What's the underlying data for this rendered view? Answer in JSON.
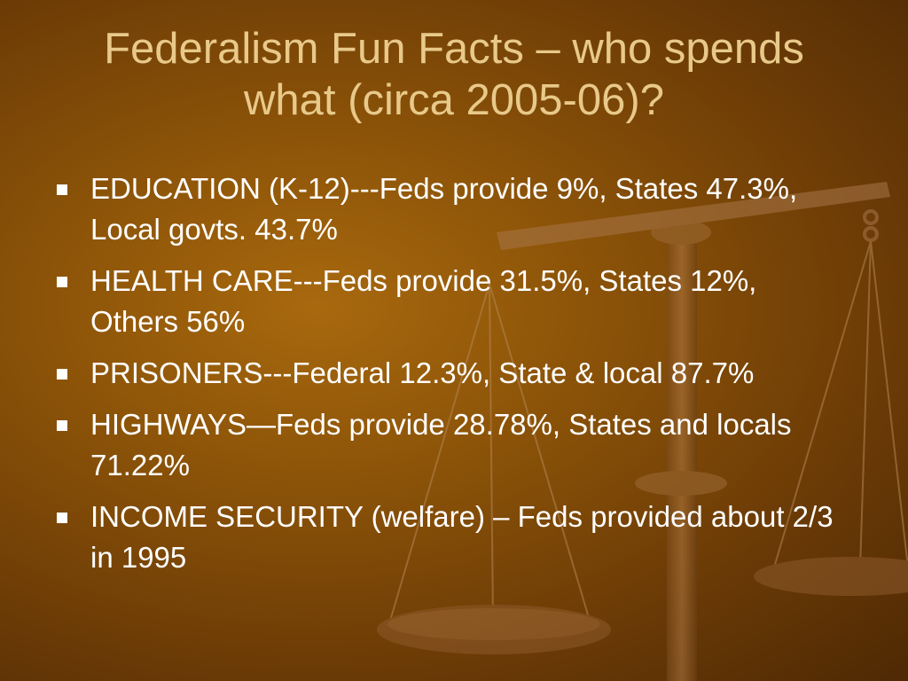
{
  "slide": {
    "title": "Federalism Fun Facts – who spends what (circa 2005-06)?",
    "bullets": [
      {
        "text": "EDUCATION (K-12)---Feds provide 9%, States 47.3%, Local govts. 43.7%"
      },
      {
        "text": "HEALTH CARE---Feds provide 31.5%, States 12%, Others 56%"
      },
      {
        "text": "PRISONERS---Federal 12.3%, State & local 87.7%"
      },
      {
        "text": "HIGHWAYS—Feds provide 28.78%, States and locals 71.22%"
      },
      {
        "text": "INCOME SECURITY (welfare) – Feds provided about 2/3 in 1995"
      }
    ],
    "background_image": "scales-of-justice",
    "colors": {
      "background": "#8a5208",
      "title": "#e8c98a",
      "body_text": "#ffffff"
    }
  }
}
